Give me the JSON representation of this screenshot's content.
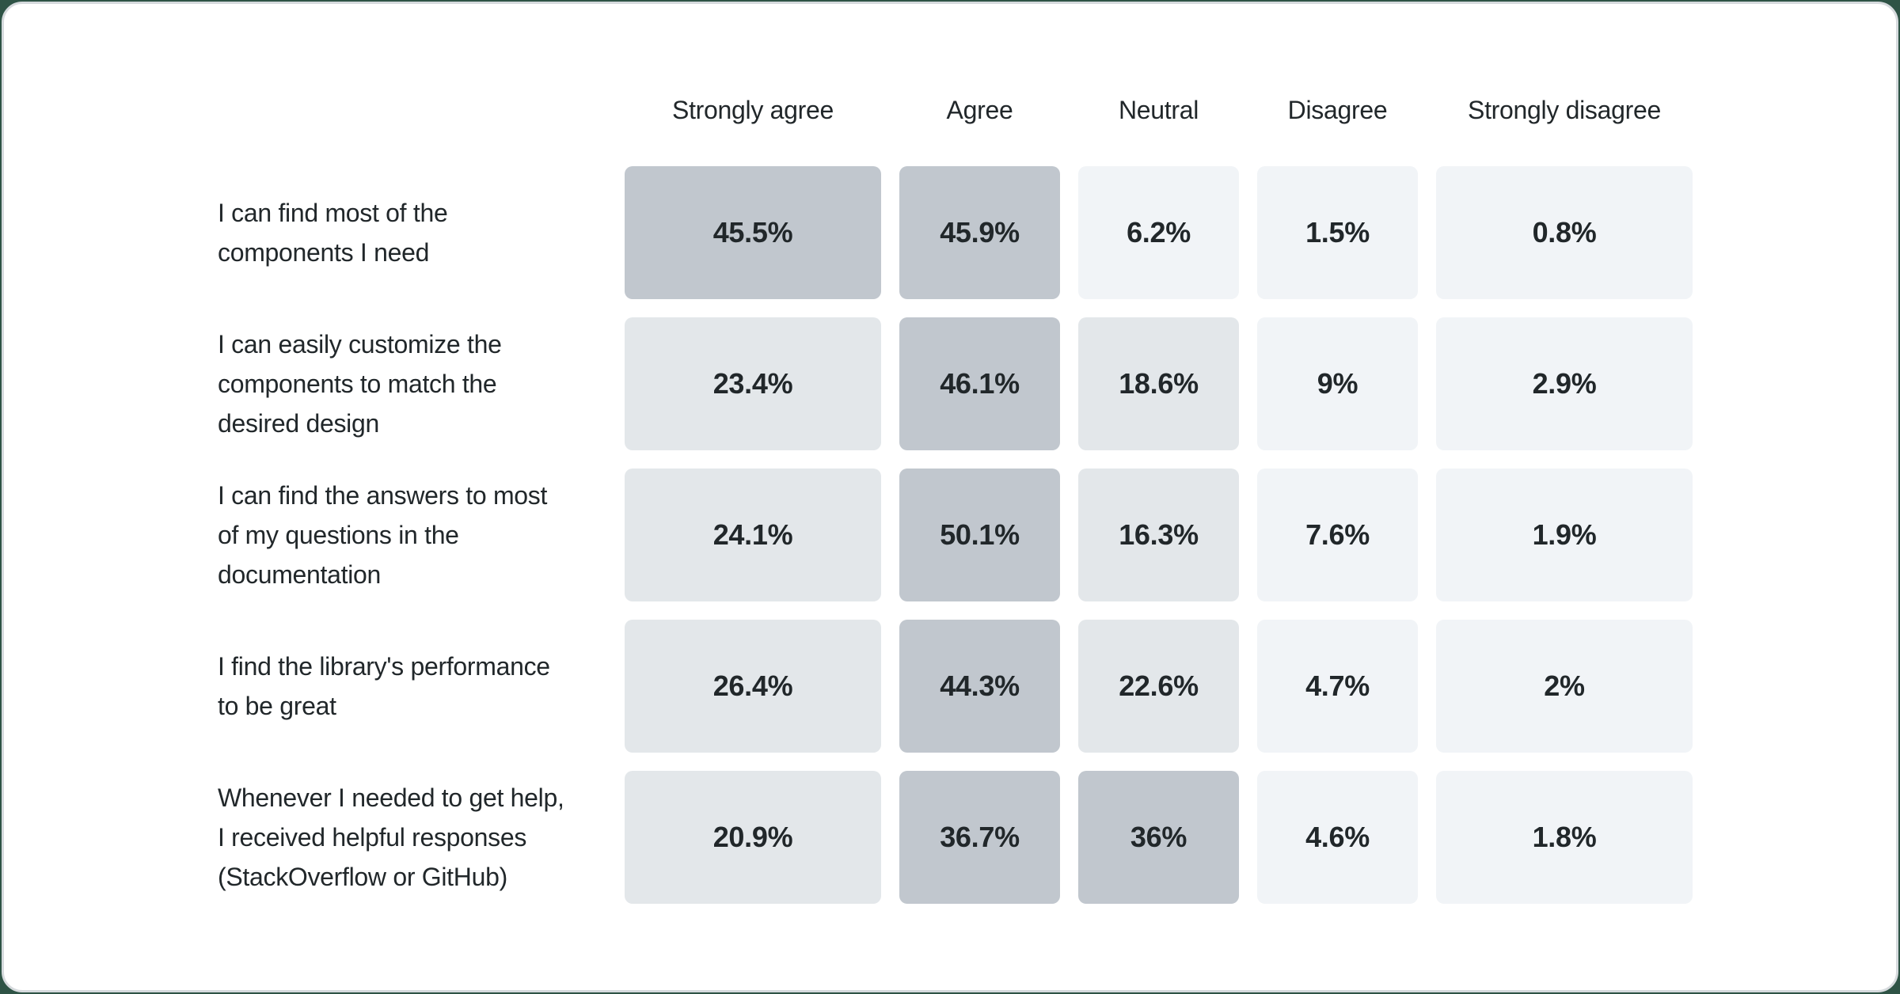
{
  "colors": {
    "page_background": "#2e5345",
    "card_background": "#ffffff",
    "card_border": "#d6dadd",
    "text": "#21272a",
    "cell_high": "#c1c7ce",
    "cell_mid": "#e3e7ea",
    "cell_low": "#f1f4f7"
  },
  "chart_data": {
    "type": "heatmap",
    "value_format": "percent",
    "legend": "none",
    "grid": "off",
    "columns": [
      "Strongly agree",
      "Agree",
      "Neutral",
      "Disagree",
      "Strongly disagree"
    ],
    "rows": [
      {
        "label": "I can find most of the\ncomponents I need",
        "values": [
          45.5,
          45.9,
          6.2,
          1.5,
          0.8
        ],
        "display_values": [
          "45.5%",
          "45.9%",
          "6.2%",
          "1.5%",
          "0.8%"
        ],
        "cell_levels": [
          "high",
          "high",
          "low",
          "low",
          "low"
        ]
      },
      {
        "label": "I can easily customize the\ncomponents to match the\ndesired design",
        "values": [
          23.4,
          46.1,
          18.6,
          9,
          2.9
        ],
        "display_values": [
          "23.4%",
          "46.1%",
          "18.6%",
          "9%",
          "2.9%"
        ],
        "cell_levels": [
          "mid",
          "high",
          "mid",
          "low",
          "low"
        ]
      },
      {
        "label": "I can find the answers to most\nof my questions in the\ndocumentation",
        "values": [
          24.1,
          50.1,
          16.3,
          7.6,
          1.9
        ],
        "display_values": [
          "24.1%",
          "50.1%",
          "16.3%",
          "7.6%",
          "1.9%"
        ],
        "cell_levels": [
          "mid",
          "high",
          "mid",
          "low",
          "low"
        ]
      },
      {
        "label": "I find the library's performance\nto be great",
        "values": [
          26.4,
          44.3,
          22.6,
          4.7,
          2
        ],
        "display_values": [
          "26.4%",
          "44.3%",
          "22.6%",
          "4.7%",
          "2%"
        ],
        "cell_levels": [
          "mid",
          "high",
          "mid",
          "low",
          "low"
        ]
      },
      {
        "label": "Whenever I needed to get help,\nI received helpful responses\n(StackOverflow or GitHub)",
        "values": [
          20.9,
          36.7,
          36,
          4.6,
          1.8
        ],
        "display_values": [
          "20.9%",
          "36.7%",
          "36%",
          "4.6%",
          "1.8%"
        ],
        "cell_levels": [
          "mid",
          "high",
          "high",
          "low",
          "low"
        ]
      }
    ]
  }
}
